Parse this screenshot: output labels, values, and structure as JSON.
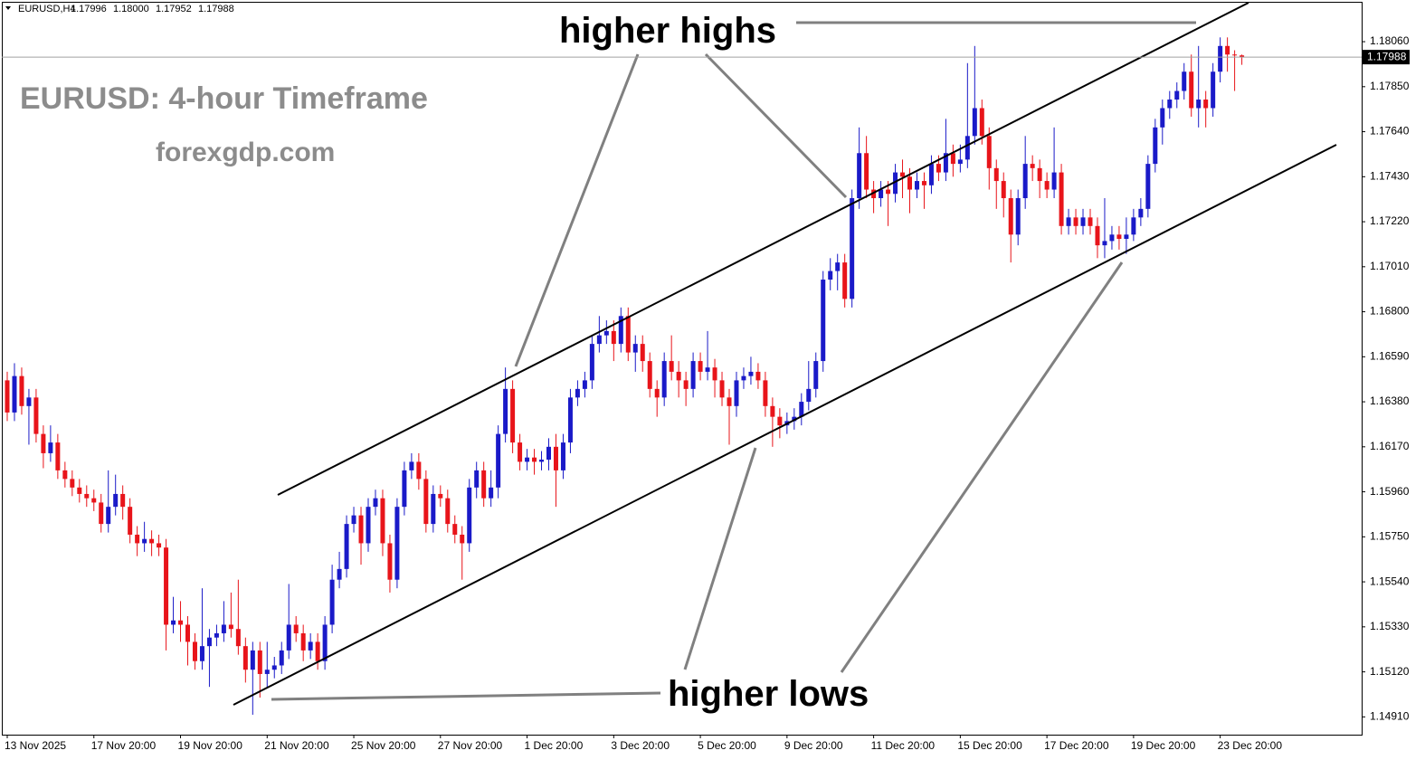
{
  "chart_data": {
    "type": "candlestick",
    "symbol": "EURUSD,H4",
    "header_prices": [
      "1.17996",
      "1.18000",
      "1.17952",
      "1.17988"
    ],
    "title": "EURUSD: 4-hour Timeframe",
    "subtitle": "forexgdp.com",
    "annotations": [
      "higher highs",
      "higher lows"
    ],
    "up_color": "#1a1ac8",
    "down_color": "#e8141a",
    "ylim": [
      1.14827,
      1.18246
    ],
    "yticks": [
      {
        "value": 1.1806,
        "label": "1.18060"
      },
      {
        "value": 1.1785,
        "label": "1.17850"
      },
      {
        "value": 1.1764,
        "label": "1.17640"
      },
      {
        "value": 1.1743,
        "label": "1.17430"
      },
      {
        "value": 1.1722,
        "label": "1.17220"
      },
      {
        "value": 1.1701,
        "label": "1.17010"
      },
      {
        "value": 1.168,
        "label": "1.16800"
      },
      {
        "value": 1.1659,
        "label": "1.16590"
      },
      {
        "value": 1.1638,
        "label": "1.16380"
      },
      {
        "value": 1.1617,
        "label": "1.16170"
      },
      {
        "value": 1.1596,
        "label": "1.15960"
      },
      {
        "value": 1.1575,
        "label": "1.15750"
      },
      {
        "value": 1.1554,
        "label": "1.15540"
      },
      {
        "value": 1.1533,
        "label": "1.15330"
      },
      {
        "value": 1.1512,
        "label": "1.15120"
      },
      {
        "value": 1.1491,
        "label": "1.14910"
      }
    ],
    "current_price": {
      "value": 1.17988,
      "label": "1.17988"
    },
    "categories": [
      "13 Nov 2025",
      null,
      null,
      null,
      null,
      null,
      null,
      null,
      null,
      null,
      null,
      null,
      "17 Nov 20:00",
      null,
      null,
      null,
      null,
      null,
      null,
      null,
      null,
      null,
      null,
      null,
      "19 Nov 20:00",
      null,
      null,
      null,
      null,
      null,
      null,
      null,
      null,
      null,
      null,
      null,
      "21 Nov 20:00",
      null,
      null,
      null,
      null,
      null,
      null,
      null,
      null,
      null,
      null,
      null,
      "25 Nov 20:00",
      null,
      null,
      null,
      null,
      null,
      null,
      null,
      null,
      null,
      null,
      null,
      "27 Nov 20:00",
      null,
      null,
      null,
      null,
      null,
      null,
      null,
      null,
      null,
      null,
      null,
      "1 Dec 20:00",
      null,
      null,
      null,
      null,
      null,
      null,
      null,
      null,
      null,
      null,
      null,
      "3 Dec 20:00",
      null,
      null,
      null,
      null,
      null,
      null,
      null,
      null,
      null,
      null,
      null,
      "5 Dec 20:00",
      null,
      null,
      null,
      null,
      null,
      null,
      null,
      null,
      null,
      null,
      null,
      "9 Dec 20:00",
      null,
      null,
      null,
      null,
      null,
      null,
      null,
      null,
      null,
      null,
      null,
      "11 Dec 20:00",
      null,
      null,
      null,
      null,
      null,
      null,
      null,
      null,
      null,
      null,
      null,
      "15 Dec 20:00",
      null,
      null,
      null,
      null,
      null,
      null,
      null,
      null,
      null,
      null,
      null,
      "17 Dec 20:00",
      null,
      null,
      null,
      null,
      null,
      null,
      null,
      null,
      null,
      null,
      null,
      "19 Dec 20:00",
      null,
      null,
      null,
      null,
      null,
      null,
      null,
      null,
      null,
      null,
      null,
      "23 Dec 20:00",
      null,
      null,
      null
    ],
    "open": [
      1.1648,
      1.1633,
      1.165,
      1.1636,
      1.164,
      1.1623,
      1.1614,
      1.1619,
      1.1606,
      1.1602,
      1.1598,
      1.1595,
      1.1593,
      1.1591,
      1.1581,
      1.1589,
      1.1595,
      1.1589,
      1.1576,
      1.1572,
      1.1574,
      1.1572,
      1.157,
      1.1534,
      1.1536,
      1.1534,
      1.1526,
      1.1517,
      1.1524,
      1.1528,
      1.153,
      1.1534,
      1.1532,
      1.1524,
      1.1513,
      1.1522,
      1.1511,
      1.1513,
      1.1515,
      1.1522,
      1.1534,
      1.153,
      1.1522,
      1.1526,
      1.1517,
      1.1534,
      1.1555,
      1.156,
      1.1581,
      1.1585,
      1.1572,
      1.1589,
      1.1593,
      1.1572,
      1.1555,
      1.1589,
      1.1606,
      1.161,
      1.1602,
      1.1581,
      1.1595,
      1.1593,
      1.1581,
      1.1576,
      1.1572,
      1.1598,
      1.1606,
      1.1593,
      1.1598,
      1.1623,
      1.1644,
      1.1619,
      1.161,
      1.1612,
      1.161,
      1.1611,
      1.1617,
      1.1606,
      1.1619,
      1.164,
      1.1644,
      1.1648,
      1.1665,
      1.1669,
      1.1671,
      1.1665,
      1.1678,
      1.1661,
      1.1665,
      1.1657,
      1.1644,
      1.164,
      1.1657,
      1.1652,
      1.1648,
      1.1644,
      1.1657,
      1.1652,
      1.1654,
      1.1648,
      1.164,
      1.1636,
      1.1648,
      1.165,
      1.1652,
      1.1648,
      1.1636,
      1.1631,
      1.1627,
      1.1629,
      1.1631,
      1.1638,
      1.1644,
      1.1657,
      1.1695,
      1.1699,
      1.1703,
      1.1686,
      1.1733,
      1.1754,
      1.1737,
      1.1733,
      1.1737,
      1.1735,
      1.1745,
      1.1743,
      1.1737,
      1.1741,
      1.1739,
      1.1749,
      1.1745,
      1.1754,
      1.1749,
      1.1751,
      1.1762,
      1.1775,
      1.1762,
      1.1747,
      1.1741,
      1.1733,
      1.1716,
      1.1733,
      1.1749,
      1.1747,
      1.1741,
      1.1737,
      1.1745,
      1.172,
      1.1724,
      1.172,
      1.1724,
      1.172,
      1.1711,
      1.1713,
      1.1716,
      1.1714,
      1.1716,
      1.1724,
      1.1728,
      1.1749,
      1.1766,
      1.1775,
      1.1779,
      1.1783,
      1.1792,
      1.1775,
      1.1779,
      1.1775,
      1.1792,
      1.1804,
      1.18,
      1.17996
    ],
    "high": [
      1.1652,
      1.1656,
      1.1654,
      1.1644,
      1.1644,
      1.1627,
      1.1627,
      1.1623,
      1.161,
      1.1606,
      1.1602,
      1.1599,
      1.1597,
      1.1595,
      1.1606,
      1.1604,
      1.1599,
      1.1593,
      1.158,
      1.1582,
      1.1578,
      1.1576,
      1.1574,
      1.1547,
      1.1545,
      1.1538,
      1.153,
      1.1551,
      1.1532,
      1.1534,
      1.1545,
      1.1549,
      1.1555,
      1.1528,
      1.1526,
      1.1526,
      1.1526,
      1.1519,
      1.1526,
      1.1553,
      1.1538,
      1.1534,
      1.153,
      1.153,
      1.1538,
      1.1562,
      1.1568,
      1.1585,
      1.1589,
      1.1589,
      1.1593,
      1.1597,
      1.1597,
      1.1576,
      1.1593,
      1.161,
      1.1614,
      1.1614,
      1.1606,
      1.1599,
      1.1599,
      1.1597,
      1.1585,
      1.158,
      1.1602,
      1.161,
      1.161,
      1.1606,
      1.1627,
      1.1654,
      1.1648,
      1.1623,
      1.1616,
      1.1616,
      1.1615,
      1.1621,
      1.1623,
      1.1623,
      1.1644,
      1.1648,
      1.1652,
      1.1669,
      1.1678,
      1.1676,
      1.1676,
      1.1682,
      1.1682,
      1.1669,
      1.1669,
      1.1661,
      1.1648,
      1.1661,
      1.1669,
      1.1657,
      1.1652,
      1.1661,
      1.1661,
      1.1671,
      1.1658,
      1.1652,
      1.1644,
      1.1652,
      1.1654,
      1.1659,
      1.1656,
      1.1652,
      1.164,
      1.1635,
      1.1633,
      1.1635,
      1.1642,
      1.1657,
      1.1661,
      1.1699,
      1.1705,
      1.1707,
      1.1707,
      1.1737,
      1.1766,
      1.1762,
      1.1741,
      1.1741,
      1.1741,
      1.1749,
      1.1751,
      1.1747,
      1.1745,
      1.1745,
      1.1753,
      1.1753,
      1.177,
      1.1758,
      1.1758,
      1.1796,
      1.1804,
      1.1779,
      1.1766,
      1.1751,
      1.1745,
      1.1737,
      1.1737,
      1.1762,
      1.1753,
      1.1751,
      1.1745,
      1.1766,
      1.1749,
      1.1728,
      1.1728,
      1.1728,
      1.1728,
      1.1724,
      1.1733,
      1.172,
      1.172,
      1.1724,
      1.1728,
      1.1733,
      1.1753,
      1.177,
      1.1779,
      1.1783,
      1.1787,
      1.1796,
      1.18,
      1.1804,
      1.1783,
      1.1796,
      1.1808,
      1.1808,
      1.1802,
      1.18
    ],
    "low": [
      1.1629,
      1.1629,
      1.1632,
      1.1618,
      1.1619,
      1.1607,
      1.161,
      1.1602,
      1.1598,
      1.1594,
      1.1591,
      1.1589,
      1.1587,
      1.1577,
      1.1577,
      1.1585,
      1.1583,
      1.1572,
      1.1566,
      1.1568,
      1.1566,
      1.1566,
      1.1522,
      1.153,
      1.1526,
      1.1515,
      1.1513,
      1.1513,
      1.1505,
      1.1524,
      1.1526,
      1.1528,
      1.152,
      1.1507,
      1.1492,
      1.15,
      1.1505,
      1.1509,
      1.1511,
      1.1518,
      1.1526,
      1.1517,
      1.1518,
      1.1513,
      1.1513,
      1.153,
      1.1551,
      1.1556,
      1.1577,
      1.1562,
      1.1568,
      1.1585,
      1.1566,
      1.1549,
      1.1551,
      1.1585,
      1.1602,
      1.1597,
      1.1577,
      1.1577,
      1.1589,
      1.1577,
      1.1572,
      1.1555,
      1.1568,
      1.1593,
      1.1589,
      1.1589,
      1.1593,
      1.1619,
      1.1614,
      1.1606,
      1.1606,
      1.1604,
      1.1606,
      1.1606,
      1.1589,
      1.1602,
      1.1614,
      1.1636,
      1.164,
      1.1644,
      1.1661,
      1.1665,
      1.1657,
      1.1661,
      1.1657,
      1.1652,
      1.1652,
      1.164,
      1.1631,
      1.1636,
      1.1648,
      1.164,
      1.1636,
      1.164,
      1.1648,
      1.1648,
      1.164,
      1.1636,
      1.1618,
      1.1631,
      1.1644,
      1.1646,
      1.1644,
      1.1631,
      1.1617,
      1.1621,
      1.1623,
      1.1625,
      1.1627,
      1.1634,
      1.164,
      1.1652,
      1.169,
      1.169,
      1.1682,
      1.1682,
      1.1728,
      1.1733,
      1.1726,
      1.1729,
      1.172,
      1.1731,
      1.1733,
      1.1726,
      1.1733,
      1.1728,
      1.1735,
      1.1741,
      1.1741,
      1.1743,
      1.1745,
      1.1747,
      1.1758,
      1.1758,
      1.1737,
      1.1728,
      1.1724,
      1.1703,
      1.1711,
      1.1728,
      1.1741,
      1.1733,
      1.1733,
      1.1733,
      1.1716,
      1.1716,
      1.1716,
      1.1716,
      1.1716,
      1.1705,
      1.1705,
      1.1709,
      1.1709,
      1.1707,
      1.1713,
      1.172,
      1.1724,
      1.1745,
      1.1758,
      1.177,
      1.1775,
      1.1779,
      1.1771,
      1.1766,
      1.1766,
      1.1771,
      1.1787,
      1.1792,
      1.1783,
      1.17952
    ],
    "close": [
      1.1633,
      1.165,
      1.1636,
      1.164,
      1.1623,
      1.1614,
      1.1619,
      1.1606,
      1.1602,
      1.1598,
      1.1595,
      1.1593,
      1.1591,
      1.1581,
      1.1589,
      1.1595,
      1.1589,
      1.1576,
      1.1572,
      1.1574,
      1.1572,
      1.157,
      1.1534,
      1.1536,
      1.1534,
      1.1526,
      1.1517,
      1.1524,
      1.1528,
      1.153,
      1.1534,
      1.1532,
      1.1524,
      1.1513,
      1.1522,
      1.1511,
      1.1513,
      1.1515,
      1.1522,
      1.1534,
      1.153,
      1.1522,
      1.1526,
      1.1517,
      1.1534,
      1.1555,
      1.156,
      1.1581,
      1.1585,
      1.1572,
      1.1589,
      1.1593,
      1.1572,
      1.1555,
      1.1589,
      1.1606,
      1.161,
      1.1602,
      1.1581,
      1.1595,
      1.1593,
      1.1581,
      1.1576,
      1.1572,
      1.1598,
      1.1606,
      1.1593,
      1.1598,
      1.1623,
      1.1644,
      1.1619,
      1.161,
      1.1612,
      1.161,
      1.1611,
      1.1617,
      1.1606,
      1.1619,
      1.164,
      1.1644,
      1.1648,
      1.1665,
      1.1669,
      1.1671,
      1.1665,
      1.1678,
      1.1661,
      1.1665,
      1.1657,
      1.1644,
      1.164,
      1.1657,
      1.1652,
      1.1648,
      1.1644,
      1.1657,
      1.1652,
      1.1654,
      1.1648,
      1.164,
      1.1636,
      1.1648,
      1.165,
      1.1652,
      1.1648,
      1.1636,
      1.1631,
      1.1627,
      1.1629,
      1.1631,
      1.1638,
      1.1644,
      1.1657,
      1.1695,
      1.1699,
      1.1703,
      1.1686,
      1.1733,
      1.1754,
      1.1737,
      1.1733,
      1.1737,
      1.1735,
      1.1745,
      1.1743,
      1.1737,
      1.1741,
      1.1739,
      1.1749,
      1.1745,
      1.1754,
      1.1749,
      1.1751,
      1.1762,
      1.1775,
      1.1762,
      1.1747,
      1.1741,
      1.1733,
      1.1716,
      1.1733,
      1.1749,
      1.1747,
      1.1741,
      1.1737,
      1.1745,
      1.172,
      1.1724,
      1.172,
      1.1724,
      1.172,
      1.1711,
      1.1713,
      1.1716,
      1.1714,
      1.1716,
      1.1724,
      1.1728,
      1.1749,
      1.1766,
      1.1775,
      1.1779,
      1.1783,
      1.1792,
      1.1775,
      1.1779,
      1.1775,
      1.1792,
      1.1804,
      1.18,
      1.17996,
      1.17988
    ]
  }
}
